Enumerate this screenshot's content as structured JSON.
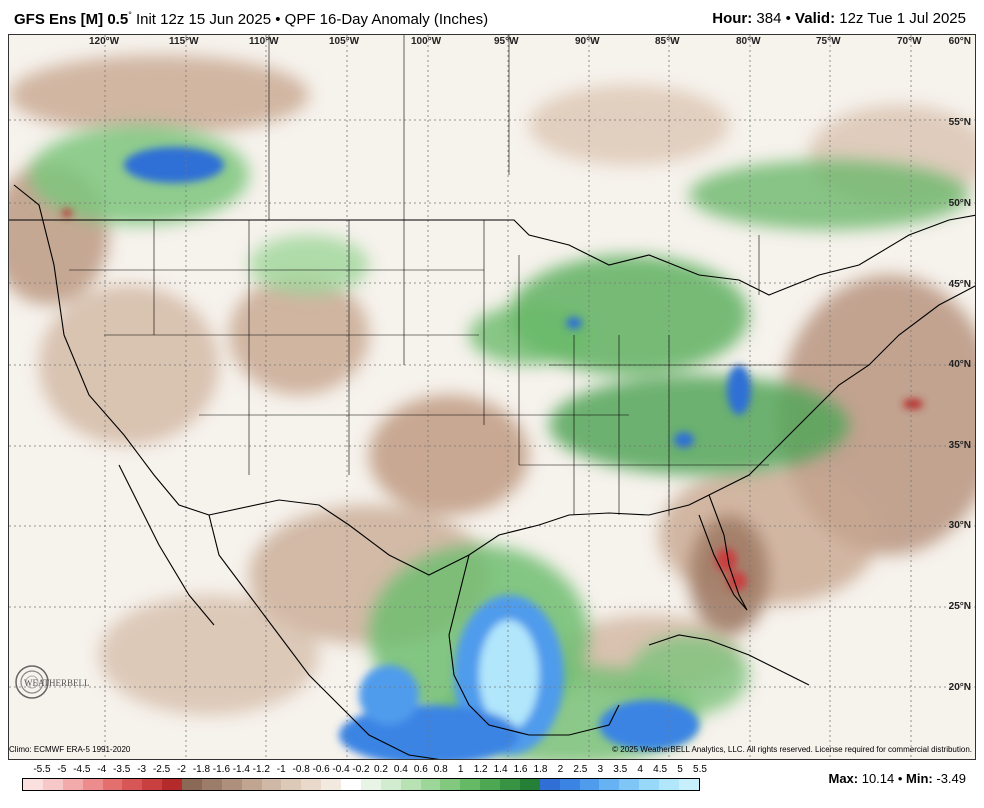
{
  "header": {
    "model": "GFS Ens [M] 0.5",
    "deg": "°",
    "init": " Init 12z 15 Jun 2025 • QPF 16-Day Anomaly (Inches)",
    "hour_label": "Hour:",
    "hour_value": " 384 • ",
    "valid_label": "Valid:",
    "valid_value": " 12z Tue 1 Jul 2025"
  },
  "map": {
    "longitudes": [
      "120°W",
      "115°W",
      "110°W",
      "105°W",
      "100°W",
      "95°W",
      "90°W",
      "85°W",
      "80°W",
      "75°W",
      "70°W"
    ],
    "latitudes": [
      "60°N",
      "55°N",
      "50°N",
      "45°N",
      "40°N",
      "35°N",
      "30°N",
      "25°N",
      "20°N"
    ]
  },
  "logo_text": "WEATHERBELL",
  "footer": {
    "climo": "Climo: ECMWF ERA-5 1991-2020",
    "copyright": "© 2025 WeatherBELL Analytics, LLC. All rights reserved. License required for commercial distribution."
  },
  "legend": {
    "labels": [
      "-5.5",
      "-5",
      "-4.5",
      "-4",
      "-3.5",
      "-3",
      "-2.5",
      "-2",
      "-1.8",
      "-1.6",
      "-1.4",
      "-1.2",
      "-1",
      "-0.8",
      "-0.6",
      "-0.4",
      "-0.2",
      "0.2",
      "0.4",
      "0.6",
      "0.8",
      "1",
      "1.2",
      "1.4",
      "1.6",
      "1.8",
      "2",
      "2.5",
      "3",
      "3.5",
      "4",
      "4.5",
      "5",
      "5.5"
    ],
    "colors": [
      "#fbe0e0",
      "#f7c8c8",
      "#f2aaaa",
      "#ec8c8c",
      "#e36f6f",
      "#d75656",
      "#c84040",
      "#b52b2b",
      "#8a6a56",
      "#9c7d69",
      "#ae907c",
      "#c0a591",
      "#cfb8a5",
      "#ddc9b8",
      "#e8d9cb",
      "#f2e9df",
      "#ffffff",
      "#e8f5e6",
      "#d1ecce",
      "#b8e2b4",
      "#9dd699",
      "#82c97f",
      "#66ba66",
      "#4ea853",
      "#389344",
      "#257f37",
      "#2f6fd6",
      "#3b84e4",
      "#4f9bec",
      "#66b2f2",
      "#7fc6f6",
      "#98d8f9",
      "#b1e6fb",
      "#c8f0fc"
    ]
  },
  "stats": {
    "max_label": "Max:",
    "max_value": " 10.14 • ",
    "min_label": "Min:",
    "min_value": " -3.49"
  }
}
